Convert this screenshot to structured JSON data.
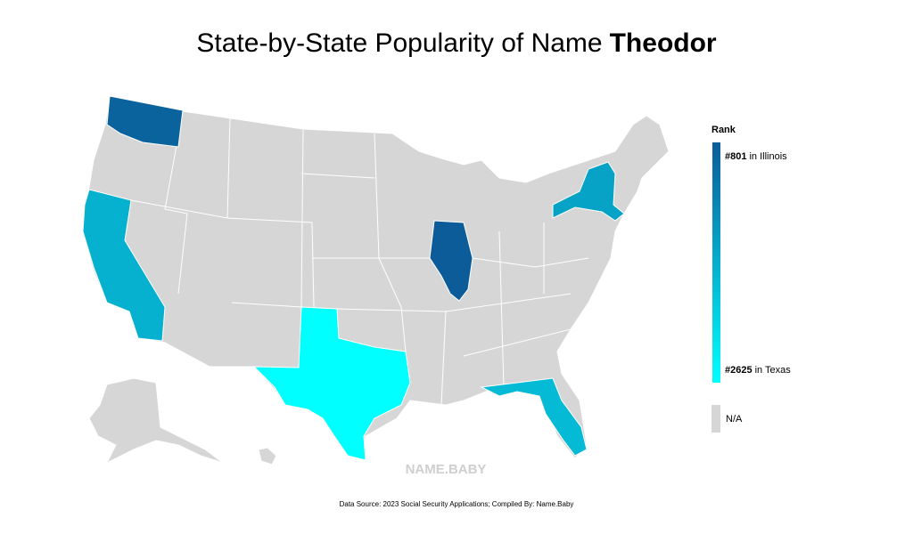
{
  "chart_data": {
    "type": "choropleth",
    "title": "State-by-State Popularity of Name",
    "title_bold": "Theodor",
    "legend": {
      "title": "Rank",
      "top": {
        "label": "#801",
        "value": 801,
        "text": "in Illinois",
        "color": "#0b5c99"
      },
      "bottom": {
        "label": "#2625",
        "value": 2625,
        "text": "in Texas",
        "color": "#00ffff"
      },
      "missing": {
        "label": "N/A",
        "color": "#d6d6d6"
      }
    },
    "states": [
      {
        "state": "Illinois",
        "rank": 801
      },
      {
        "state": "Washington",
        "rank": 880
      },
      {
        "state": "New York",
        "rank": 1600
      },
      {
        "state": "California",
        "rank": 1750
      },
      {
        "state": "Florida",
        "rank": 1850
      },
      {
        "state": "Texas",
        "rank": 2625
      }
    ],
    "watermark": "NAME.BABY",
    "source": "Data Source: 2023 Social Security Applications; Compiled By: Name.Baby"
  }
}
